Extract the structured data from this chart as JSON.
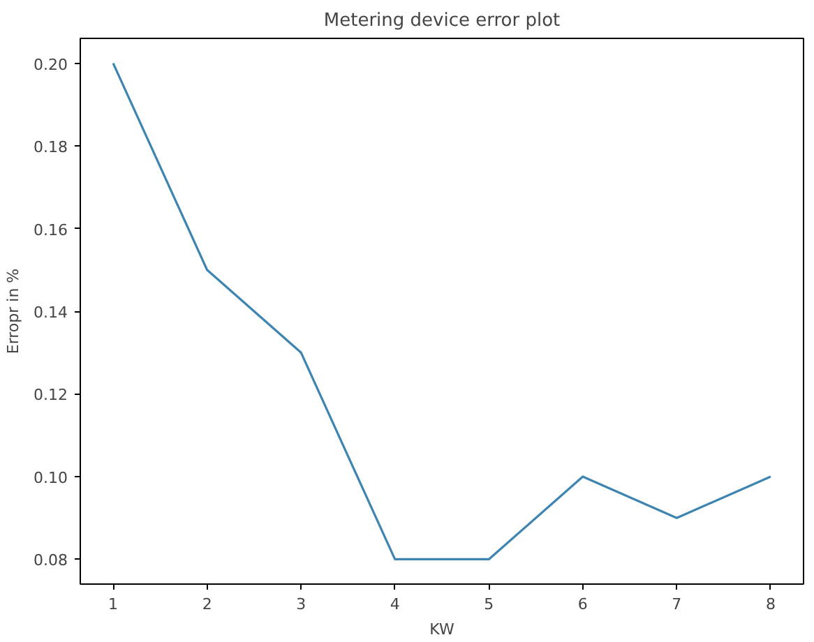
{
  "chart_data": {
    "type": "line",
    "title": "Metering device error plot",
    "xlabel": "KW",
    "ylabel": "Erropr in %",
    "x": [
      1,
      2,
      3,
      4,
      5,
      6,
      7,
      8
    ],
    "series": [
      {
        "color": "#3d85b0",
        "values": [
          0.2,
          0.15,
          0.13,
          0.08,
          0.08,
          0.1,
          0.09,
          0.1
        ]
      }
    ],
    "xlim": [
      0.65,
      8.35
    ],
    "ylim": [
      0.074,
      0.206
    ],
    "xticks": [
      1,
      2,
      3,
      4,
      5,
      6,
      7,
      8
    ],
    "yticks": [
      {
        "value": 0.08,
        "label": "0.08"
      },
      {
        "value": 0.1,
        "label": "0.10"
      },
      {
        "value": 0.12,
        "label": "0.12"
      },
      {
        "value": 0.14,
        "label": "0.14"
      },
      {
        "value": 0.16,
        "label": "0.16"
      },
      {
        "value": 0.18,
        "label": "0.18"
      },
      {
        "value": 0.2,
        "label": "0.20"
      }
    ],
    "grid": false,
    "marker": "none",
    "line_style": "solid"
  }
}
